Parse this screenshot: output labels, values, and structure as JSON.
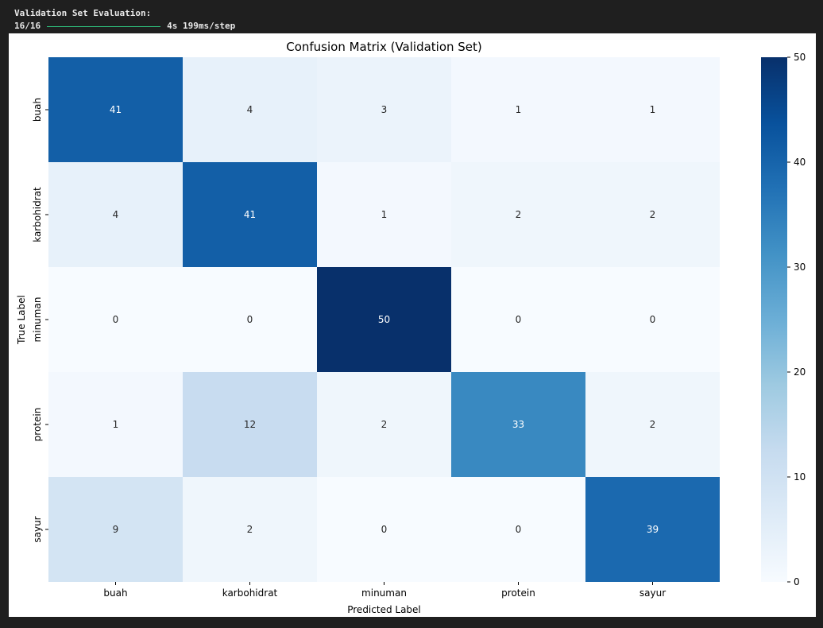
{
  "console": {
    "heading": "Validation Set Evaluation:",
    "step_count": "16/16",
    "progress": 1.0,
    "timing": "4s 199ms/step"
  },
  "chart_data": {
    "type": "heatmap",
    "title": "Confusion Matrix (Validation Set)",
    "xlabel": "Predicted Label",
    "ylabel": "True Label",
    "x_categories": [
      "buah",
      "karbohidrat",
      "minuman",
      "protein",
      "sayur"
    ],
    "y_categories": [
      "buah",
      "karbohidrat",
      "minuman",
      "protein",
      "sayur"
    ],
    "values": [
      [
        41,
        4,
        3,
        1,
        1
      ],
      [
        4,
        41,
        1,
        2,
        2
      ],
      [
        0,
        0,
        50,
        0,
        0
      ],
      [
        1,
        12,
        2,
        33,
        2
      ],
      [
        9,
        2,
        0,
        0,
        39
      ]
    ],
    "colorbar": {
      "min": 0,
      "max": 50,
      "ticks": [
        0,
        10,
        20,
        30,
        40,
        50
      ]
    },
    "colormap": "Blues",
    "grid": false
  }
}
